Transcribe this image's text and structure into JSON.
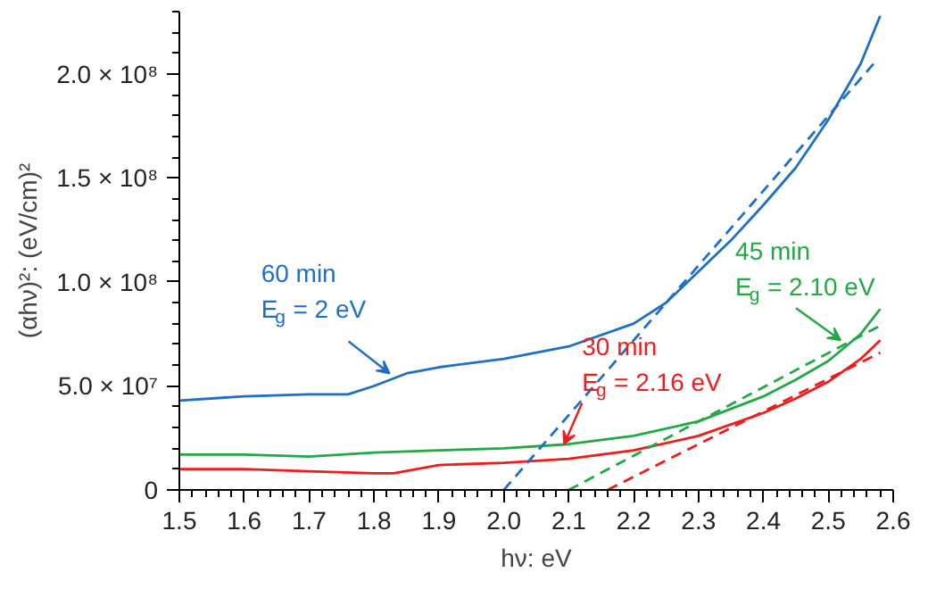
{
  "chart_data": {
    "type": "line",
    "xlabel": "hν: eV",
    "ylabel": "(αhν)²: (eV/cm)²",
    "xlim": [
      1.5,
      2.6
    ],
    "xticks": [
      {
        "value": 1.5,
        "label": "1.5"
      },
      {
        "value": 1.6,
        "label": "1.6"
      },
      {
        "value": 1.7,
        "label": "1.7"
      },
      {
        "value": 1.8,
        "label": "1.8"
      },
      {
        "value": 1.9,
        "label": "1.9"
      },
      {
        "value": 2.0,
        "label": "2.0"
      },
      {
        "value": 2.1,
        "label": "2.1"
      },
      {
        "value": 2.2,
        "label": "2.2"
      },
      {
        "value": 2.3,
        "label": "2.3"
      },
      {
        "value": 2.4,
        "label": "2.4"
      },
      {
        "value": 2.5,
        "label": "2.5"
      },
      {
        "value": 2.6,
        "label": "2.6"
      }
    ],
    "ylim": [
      0,
      230000000
    ],
    "yticks": [
      0,
      {
        "value": 50000000,
        "label": "5.0 × 10⁷"
      },
      {
        "value": 100000000,
        "label": "1.0 × 10⁸"
      },
      {
        "value": 150000000,
        "label": "1.5 × 10⁸"
      },
      {
        "value": 200000000,
        "label": "2.0 × 10⁸"
      }
    ],
    "grid": false,
    "series": [
      {
        "color": "#1f6fc5",
        "line_style": "solid",
        "x": [
          1.5,
          1.6,
          1.7,
          1.76,
          1.8,
          1.85,
          1.9,
          2.0,
          2.1,
          2.2,
          2.25,
          2.3,
          2.35,
          2.4,
          2.45,
          2.5,
          2.55,
          2.58
        ],
        "values": [
          43000000,
          45000000,
          46000000,
          46000000,
          50000000,
          56000000,
          59000000,
          63000000,
          69000000,
          80000000,
          90000000,
          105000000,
          120000000,
          137000000,
          155000000,
          178000000,
          205000000,
          228000000
        ]
      },
      {
        "color": "#22a845",
        "line_style": "solid",
        "x": [
          1.5,
          1.6,
          1.7,
          1.8,
          1.9,
          2.0,
          2.1,
          2.2,
          2.3,
          2.4,
          2.45,
          2.5,
          2.55,
          2.58
        ],
        "values": [
          17000000,
          17000000,
          16000000,
          18000000,
          19000000,
          20000000,
          22000000,
          26000000,
          33000000,
          45000000,
          53000000,
          62000000,
          75000000,
          87000000
        ]
      },
      {
        "color": "#ee1c1c",
        "line_style": "solid",
        "x": [
          1.5,
          1.6,
          1.7,
          1.8,
          1.83,
          1.9,
          2.0,
          2.1,
          2.2,
          2.3,
          2.4,
          2.45,
          2.5,
          2.55,
          2.58
        ],
        "values": [
          10000000,
          10000000,
          9000000,
          8000000,
          8000000,
          12000000,
          13000000,
          15000000,
          19000000,
          26000000,
          37000000,
          44000000,
          52000000,
          63000000,
          72000000
        ]
      },
      {
        "color": "#1f6fc5",
        "line_style": "dashed",
        "x": [
          2.0,
          2.57
        ],
        "values": [
          0,
          205000000
        ]
      },
      {
        "color": "#22a845",
        "line_style": "dashed",
        "x": [
          2.1,
          2.58
        ],
        "values": [
          0,
          79000000
        ]
      },
      {
        "color": "#ee1c1c",
        "line_style": "dashed",
        "x": [
          2.16,
          2.58
        ],
        "values": [
          0,
          66000000
        ]
      }
    ],
    "annotations": [
      {
        "text": "60 min\nE$_{g}$ = 2 eV",
        "x": 1.824,
        "y": 56000000
      },
      {
        "text": "45 min\nE$_{g}$ = 2.10 eV",
        "x": 2.519,
        "y": 72000000
      },
      {
        "text": "30 min\nE$_{g}$ = 2.16 eV",
        "x": 2.093,
        "y": 22000000
      }
    ]
  }
}
